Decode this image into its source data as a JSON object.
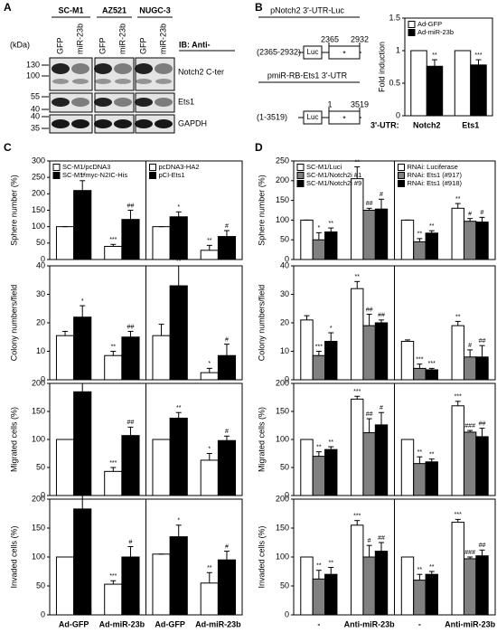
{
  "panel_labels": [
    "A",
    "B",
    "C",
    "D"
  ],
  "blot": {
    "cell_lines": [
      "SC-M1",
      "AZ521",
      "NUGC-3"
    ],
    "lanes": [
      "GFP",
      "miR-23b",
      "GFP",
      "miR-23b",
      "GFP",
      "miR-23b"
    ],
    "kda_label": "(kDa)",
    "markers": [
      "130",
      "100",
      "55",
      "40",
      "40",
      "35"
    ],
    "ib_label": "IB: Anti-",
    "proteins": [
      "Notch2 C-ter",
      "Ets1",
      "GAPDH"
    ]
  },
  "constructs": [
    {
      "title": "pNotch2 3'-UTR-Luc",
      "range": "(2365-2932)",
      "start": "2365",
      "end": "2932",
      "box": "Luc",
      "mark": "*"
    },
    {
      "title": "pmiR-RB-Ets1 3'-UTR",
      "range": "(1-3519)",
      "start": "1",
      "end": "3519",
      "box": "Luc",
      "mark": "*"
    }
  ],
  "chart_data": [
    {
      "type": "bar",
      "ylabel": "Fold induction",
      "xlabel": "3'-UTR:",
      "ylim": [
        0,
        1.5
      ],
      "yticks": [
        0,
        0.5,
        1,
        1.5
      ],
      "groups": [
        {
          "categories": [
            "Notch2",
            "Ets1"
          ],
          "series": [
            {
              "name": "Ad-GFP",
              "color": "#ffffff",
              "values": [
                1,
                1
              ],
              "errors": [
                0,
                0
              ],
              "stars": [
                null,
                null
              ]
            },
            {
              "name": "Ad-miR-23b",
              "color": "#000000",
              "values": [
                0.76,
                0.78
              ],
              "errors": [
                0.1,
                0.08
              ],
              "stars": [
                "**",
                "***"
              ]
            }
          ]
        }
      ]
    },
    {
      "type": "bar",
      "ylabel": "Sphere number (%)",
      "ylim": [
        0,
        300
      ],
      "yticks": [
        0,
        50,
        100,
        150,
        200,
        250,
        300
      ],
      "groups": [
        {
          "series": [
            {
              "name": "SC-M1/pcDNA3",
              "color": "#ffffff",
              "values": [
                100,
                40
              ],
              "errors": [
                0,
                6
              ],
              "stars": [
                null,
                "***"
              ]
            },
            {
              "name": "SC-M1/myc-N2IC-His",
              "color": "#000000",
              "values": [
                210,
                122
              ],
              "errors": [
                30,
                28
              ],
              "stars": [
                "**",
                "##"
              ]
            }
          ]
        },
        {
          "series": [
            {
              "name": "pcDNA3-HA2",
              "color": "#ffffff",
              "values": [
                100,
                28
              ],
              "errors": [
                0,
                15
              ],
              "stars": [
                null,
                "**"
              ]
            },
            {
              "name": "pCI-Ets1",
              "color": "#000000",
              "values": [
                130,
                70
              ],
              "errors": [
                15,
                18
              ],
              "stars": [
                "*",
                "#"
              ]
            }
          ]
        }
      ]
    },
    {
      "type": "bar",
      "ylabel": "Colony numbers/field",
      "ylim": [
        0,
        40
      ],
      "yticks": [
        0,
        10,
        20,
        30,
        40
      ],
      "groups": [
        {
          "series": [
            {
              "color": "#ffffff",
              "values": [
                15.5,
                8.5
              ],
              "errors": [
                1.5,
                1.5
              ],
              "stars": [
                null,
                "**"
              ]
            },
            {
              "color": "#000000",
              "values": [
                22,
                15
              ],
              "errors": [
                4,
                2
              ],
              "stars": [
                "*",
                "##"
              ]
            }
          ]
        },
        {
          "series": [
            {
              "color": "#ffffff",
              "values": [
                15.5,
                2.5
              ],
              "errors": [
                4,
                1.5
              ],
              "stars": [
                null,
                "*"
              ]
            },
            {
              "color": "#000000",
              "values": [
                33,
                8.5
              ],
              "errors": [
                7,
                4
              ],
              "stars": [
                "**",
                "#"
              ]
            }
          ]
        }
      ]
    },
    {
      "type": "bar",
      "ylabel": "Migrated cells (%)",
      "ylim": [
        0,
        200
      ],
      "yticks": [
        0,
        50,
        100,
        150,
        200
      ],
      "groups": [
        {
          "series": [
            {
              "color": "#ffffff",
              "values": [
                100,
                43
              ],
              "errors": [
                0,
                7
              ],
              "stars": [
                null,
                "***"
              ]
            },
            {
              "color": "#000000",
              "values": [
                185,
                107
              ],
              "errors": [
                15,
                15
              ],
              "stars": [
                "***",
                "##"
              ]
            }
          ]
        },
        {
          "series": [
            {
              "color": "#ffffff",
              "values": [
                100,
                63
              ],
              "errors": [
                0,
                12
              ],
              "stars": [
                null,
                "*"
              ]
            },
            {
              "color": "#000000",
              "values": [
                138,
                98
              ],
              "errors": [
                10,
                8
              ],
              "stars": [
                "**",
                "#"
              ]
            }
          ]
        }
      ]
    },
    {
      "type": "bar",
      "ylabel": "Invaded cells (%)",
      "ylim": [
        0,
        200
      ],
      "yticks": [
        0,
        50,
        100,
        150,
        200
      ],
      "groups": [
        {
          "categories": [
            "Ad-GFP",
            "Ad-miR-23b"
          ],
          "series": [
            {
              "color": "#ffffff",
              "values": [
                100,
                53
              ],
              "errors": [
                0,
                6
              ],
              "stars": [
                null,
                "***"
              ]
            },
            {
              "color": "#000000",
              "values": [
                183,
                100
              ],
              "errors": [
                30,
                18
              ],
              "stars": [
                "***",
                "#"
              ]
            }
          ]
        },
        {
          "categories": [
            "Ad-GFP",
            "Ad-miR-23b"
          ],
          "series": [
            {
              "color": "#ffffff",
              "values": [
                105,
                55
              ],
              "errors": [
                0,
                18
              ],
              "stars": [
                null,
                "**"
              ]
            },
            {
              "color": "#000000",
              "values": [
                135,
                95
              ],
              "errors": [
                20,
                15
              ],
              "stars": [
                "*",
                "#"
              ]
            }
          ]
        }
      ]
    },
    {
      "type": "bar",
      "ylabel": "Sphere number (%)",
      "ylim": [
        0,
        250
      ],
      "yticks": [
        0,
        50,
        100,
        150,
        200,
        250
      ],
      "groups": [
        {
          "series": [
            {
              "name": "SC-M1/Luci",
              "color": "#ffffff",
              "values": [
                100,
                205
              ],
              "errors": [
                0,
                30
              ],
              "stars": [
                null,
                "**"
              ]
            },
            {
              "name": "SC-M1/Notch2i #1",
              "color": "#808080",
              "values": [
                50,
                125
              ],
              "errors": [
                18,
                5
              ],
              "stars": [
                "*",
                "##"
              ]
            },
            {
              "name": "SC-M1/Notch2i #9",
              "color": "#000000",
              "values": [
                70,
                128
              ],
              "errors": [
                10,
                25
              ],
              "stars": [
                "**",
                "#"
              ]
            }
          ]
        },
        {
          "series": [
            {
              "name": "RNAi: Luciferase",
              "color": "#ffffff",
              "values": [
                100,
                130
              ],
              "errors": [
                0,
                12
              ],
              "stars": [
                null,
                "**"
              ]
            },
            {
              "name": "RNAi: Ets1 (#917)",
              "color": "#808080",
              "values": [
                45,
                97
              ],
              "errors": [
                8,
                7
              ],
              "stars": [
                "**",
                "#"
              ]
            },
            {
              "name": "RNAi: Ets1 (#918)",
              "color": "#000000",
              "values": [
                67,
                95
              ],
              "errors": [
                6,
                12
              ],
              "stars": [
                "**",
                "#"
              ]
            }
          ]
        }
      ]
    },
    {
      "type": "bar",
      "ylabel": "Colony numbers/field",
      "ylim": [
        0,
        40
      ],
      "yticks": [
        0,
        10,
        20,
        30,
        40
      ],
      "groups": [
        {
          "series": [
            {
              "color": "#ffffff",
              "values": [
                21,
                32
              ],
              "errors": [
                1.5,
                2.5
              ],
              "stars": [
                null,
                "**"
              ]
            },
            {
              "color": "#808080",
              "values": [
                8.5,
                19
              ],
              "errors": [
                1.5,
                4
              ],
              "stars": [
                "***",
                "##"
              ]
            },
            {
              "color": "#000000",
              "values": [
                13.5,
                20
              ],
              "errors": [
                3,
                1
              ],
              "stars": [
                "*",
                "##"
              ]
            }
          ]
        },
        {
          "series": [
            {
              "color": "#ffffff",
              "values": [
                13.5,
                19
              ],
              "errors": [
                0.5,
                1.5
              ],
              "stars": [
                null,
                "**"
              ]
            },
            {
              "color": "#808080",
              "values": [
                4,
                8
              ],
              "errors": [
                1.5,
                2.5
              ],
              "stars": [
                "***",
                "#"
              ]
            },
            {
              "color": "#000000",
              "values": [
                3.5,
                8
              ],
              "errors": [
                0.5,
                4
              ],
              "stars": [
                "***",
                "##"
              ]
            }
          ]
        }
      ]
    },
    {
      "type": "bar",
      "ylabel": "Migrated cells (%)",
      "ylim": [
        0,
        200
      ],
      "yticks": [
        0,
        50,
        100,
        150,
        200
      ],
      "groups": [
        {
          "series": [
            {
              "color": "#ffffff",
              "values": [
                100,
                172
              ],
              "errors": [
                0,
                5
              ],
              "stars": [
                null,
                "***"
              ]
            },
            {
              "color": "#808080",
              "values": [
                70,
                112
              ],
              "errors": [
                8,
                25
              ],
              "stars": [
                "**",
                "##"
              ]
            },
            {
              "color": "#000000",
              "values": [
                82,
                126
              ],
              "errors": [
                5,
                22
              ],
              "stars": [
                "**",
                "#"
              ]
            }
          ]
        },
        {
          "series": [
            {
              "color": "#ffffff",
              "values": [
                100,
                160
              ],
              "errors": [
                0,
                8
              ],
              "stars": [
                null,
                "***"
              ]
            },
            {
              "color": "#808080",
              "values": [
                57,
                113
              ],
              "errors": [
                12,
                3
              ],
              "stars": [
                "**",
                "###"
              ]
            },
            {
              "color": "#000000",
              "values": [
                60,
                105
              ],
              "errors": [
                5,
                15
              ],
              "stars": [
                "**",
                "##"
              ]
            }
          ]
        }
      ]
    },
    {
      "type": "bar",
      "ylabel": "Invaded cells (%)",
      "ylim": [
        0,
        200
      ],
      "yticks": [
        0,
        50,
        100,
        150,
        200
      ],
      "groups": [
        {
          "categories": [
            "-",
            "Anti-miR-23b"
          ],
          "series": [
            {
              "color": "#ffffff",
              "values": [
                100,
                155
              ],
              "errors": [
                0,
                8
              ],
              "stars": [
                null,
                "***"
              ]
            },
            {
              "color": "#808080",
              "values": [
                62,
                100
              ],
              "errors": [
                15,
                20
              ],
              "stars": [
                "**",
                "#"
              ]
            },
            {
              "color": "#000000",
              "values": [
                70,
                110
              ],
              "errors": [
                12,
                15
              ],
              "stars": [
                "**",
                "##"
              ]
            }
          ]
        },
        {
          "categories": [
            "-",
            "Anti-miR-23b"
          ],
          "series": [
            {
              "color": "#ffffff",
              "values": [
                100,
                160
              ],
              "errors": [
                0,
                5
              ],
              "stars": [
                null,
                "***"
              ]
            },
            {
              "color": "#808080",
              "values": [
                60,
                97
              ],
              "errors": [
                10,
                3
              ],
              "stars": [
                "**",
                "###"
              ]
            },
            {
              "color": "#000000",
              "values": [
                70,
                102
              ],
              "errors": [
                5,
                10
              ],
              "stars": [
                "**",
                "##"
              ]
            }
          ]
        }
      ]
    }
  ]
}
